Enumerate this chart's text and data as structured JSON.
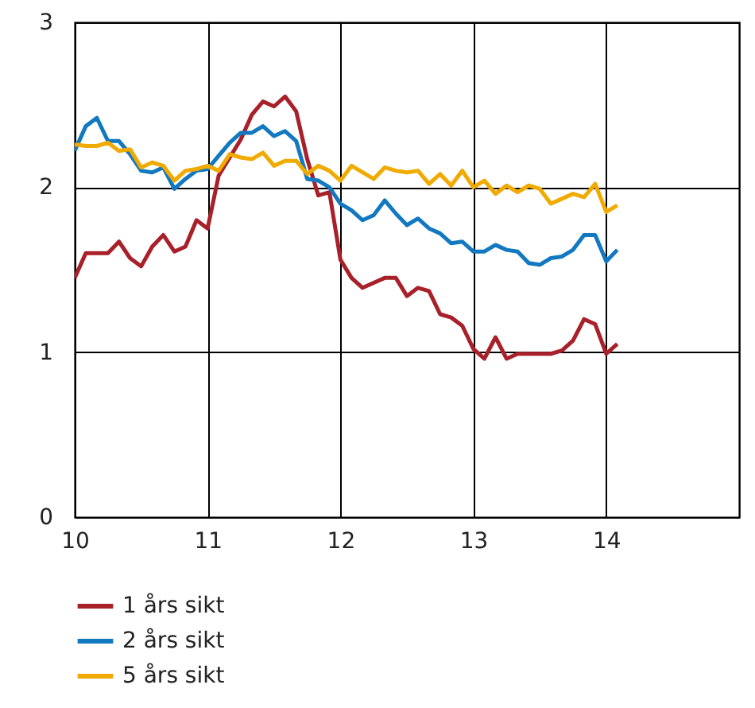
{
  "chart_data": {
    "type": "line",
    "x": [
      10,
      10.0833,
      10.1667,
      10.25,
      10.3333,
      10.4167,
      10.5,
      10.5833,
      10.6667,
      10.75,
      10.8333,
      10.9167,
      11,
      11.0833,
      11.1667,
      11.25,
      11.3333,
      11.4167,
      11.5,
      11.5833,
      11.6667,
      11.75,
      11.8333,
      11.9167,
      12,
      12.0833,
      12.1667,
      12.25,
      12.3333,
      12.4167,
      12.5,
      12.5833,
      12.6667,
      12.75,
      12.8333,
      12.9167,
      13,
      13.0833,
      13.1667,
      13.25,
      13.3333,
      13.4167,
      13.5,
      13.5833,
      13.6667,
      13.75,
      13.8333,
      13.9167,
      14,
      14.0833
    ],
    "series": [
      {
        "name": "1 års sikt",
        "color": "#a8202a",
        "values": [
          1.45,
          1.6,
          1.6,
          1.6,
          1.67,
          1.57,
          1.52,
          1.64,
          1.71,
          1.61,
          1.64,
          1.8,
          1.75,
          2.07,
          2.18,
          2.29,
          2.44,
          2.52,
          2.49,
          2.55,
          2.46,
          2.17,
          1.95,
          1.97,
          1.56,
          1.45,
          1.39,
          1.42,
          1.45,
          1.45,
          1.34,
          1.39,
          1.37,
          1.23,
          1.21,
          1.16,
          1.02,
          0.96,
          1.09,
          0.96,
          0.99,
          0.99,
          0.99,
          0.99,
          1.01,
          1.07,
          1.2,
          1.17,
          0.99,
          1.05
        ]
      },
      {
        "name": "2 års sikt",
        "color": "#1279c0",
        "values": [
          2.22,
          2.37,
          2.42,
          2.28,
          2.28,
          2.2,
          2.1,
          2.09,
          2.12,
          1.99,
          2.05,
          2.1,
          2.11,
          2.19,
          2.27,
          2.33,
          2.33,
          2.37,
          2.31,
          2.34,
          2.28,
          2.05,
          2.04,
          2.0,
          1.9,
          1.86,
          1.8,
          1.83,
          1.92,
          1.84,
          1.77,
          1.81,
          1.75,
          1.72,
          1.66,
          1.67,
          1.61,
          1.61,
          1.65,
          1.62,
          1.61,
          1.54,
          1.53,
          1.57,
          1.58,
          1.62,
          1.71,
          1.71,
          1.55,
          1.62
        ]
      },
      {
        "name": "5 års sikt",
        "color": "#f0aa00",
        "values": [
          2.26,
          2.25,
          2.25,
          2.27,
          2.22,
          2.23,
          2.12,
          2.15,
          2.13,
          2.04,
          2.1,
          2.11,
          2.13,
          2.1,
          2.2,
          2.18,
          2.17,
          2.21,
          2.13,
          2.16,
          2.16,
          2.08,
          2.13,
          2.1,
          2.04,
          2.13,
          2.09,
          2.05,
          2.12,
          2.1,
          2.09,
          2.1,
          2.02,
          2.08,
          2.01,
          2.1,
          2.0,
          2.04,
          1.96,
          2.01,
          1.97,
          2.01,
          1.99,
          1.9,
          1.93,
          1.96,
          1.94,
          2.02,
          1.85,
          1.89
        ]
      }
    ],
    "xlim": [
      10,
      15
    ],
    "xticks": [
      10,
      11,
      12,
      13,
      14
    ],
    "ylim": [
      0,
      3
    ],
    "yticks": [
      0,
      1,
      2,
      3
    ],
    "grid": true,
    "legend": "bottom left",
    "line_style": "solid"
  }
}
